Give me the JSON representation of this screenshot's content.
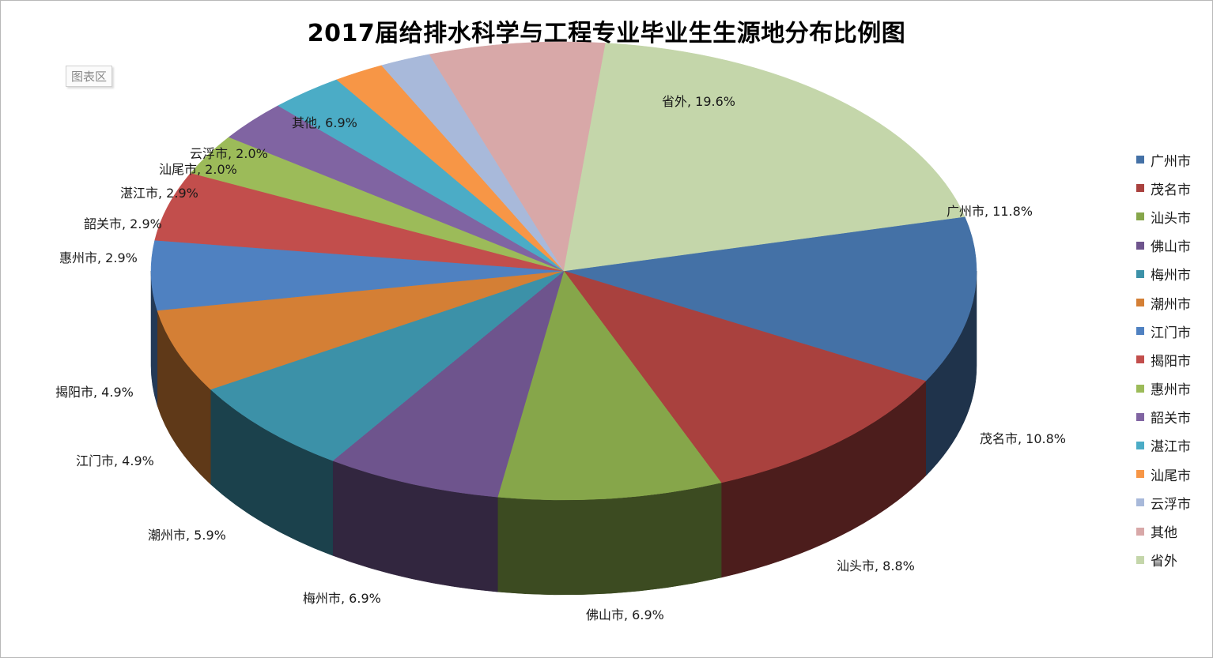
{
  "chart_data": {
    "type": "pie",
    "title": "2017届给排水科学与工程专业毕业生生源地分布比例图",
    "area_label": "图表区",
    "legend_position": "right",
    "slices": [
      {
        "name": "广州市",
        "value": 11.8,
        "label": "广州市, 11.8%",
        "color": "#4471A6"
      },
      {
        "name": "茂名市",
        "value": 10.8,
        "label": "茂名市, 10.8%",
        "color": "#A9413E"
      },
      {
        "name": "汕头市",
        "value": 8.8,
        "label": "汕头市, 8.8%",
        "color": "#86A64A"
      },
      {
        "name": "佛山市",
        "value": 6.9,
        "label": "佛山市, 6.9%",
        "color": "#6E548D"
      },
      {
        "name": "梅州市",
        "value": 6.9,
        "label": "梅州市, 6.9%",
        "color": "#3C91A8"
      },
      {
        "name": "潮州市",
        "value": 5.9,
        "label": "潮州市, 5.9%",
        "color": "#D47F35"
      },
      {
        "name": "江门市",
        "value": 4.9,
        "label": "江门市, 4.9%",
        "color": "#4F81C1"
      },
      {
        "name": "揭阳市",
        "value": 4.9,
        "label": "揭阳市, 4.9%",
        "color": "#C24E4C"
      },
      {
        "name": "惠州市",
        "value": 2.9,
        "label": "惠州市, 2.9%",
        "color": "#9CBB59"
      },
      {
        "name": "韶关市",
        "value": 2.9,
        "label": "韶关市, 2.9%",
        "color": "#8064A2"
      },
      {
        "name": "湛江市",
        "value": 2.9,
        "label": "湛江市, 2.9%",
        "color": "#4BACC6"
      },
      {
        "name": "汕尾市",
        "value": 2.0,
        "label": "汕尾市, 2.0%",
        "color": "#F79646"
      },
      {
        "name": "云浮市",
        "value": 2.0,
        "label": "云浮市, 2.0%",
        "color": "#A8B9DA"
      },
      {
        "name": "其他",
        "value": 6.9,
        "label": "其他, 6.9%",
        "color": "#D8A8A8"
      },
      {
        "name": "省外",
        "value": 19.6,
        "label": "省外, 19.6%",
        "color": "#C4D6AA"
      }
    ]
  }
}
